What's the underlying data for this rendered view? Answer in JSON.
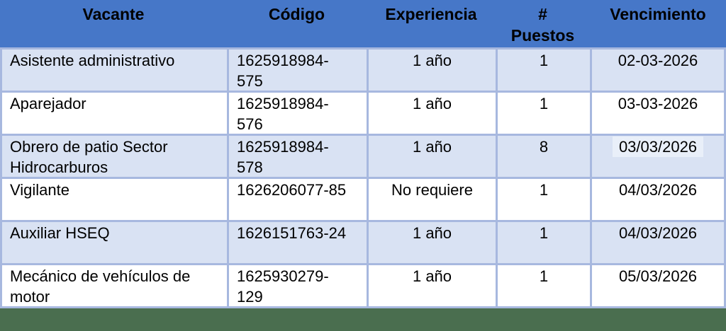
{
  "table": {
    "columns": [
      {
        "label": "Vacante"
      },
      {
        "label": "Código"
      },
      {
        "label": "Experiencia"
      },
      {
        "label": "#\nPuestos"
      },
      {
        "label": "Vencimiento"
      }
    ],
    "rows": [
      {
        "vacante": "Asistente administrativo",
        "codigo": "1625918984-575",
        "experiencia": "1 año",
        "puestos": "1",
        "vencimiento": "02-03-2026",
        "vencimiento_highlighted": false
      },
      {
        "vacante": "Aparejador",
        "codigo": "1625918984-576",
        "experiencia": "1 año",
        "puestos": "1",
        "vencimiento": "03-03-2026",
        "vencimiento_highlighted": false
      },
      {
        "vacante": "Obrero de patio Sector Hidrocarburos",
        "codigo": "1625918984-578",
        "experiencia": "1 año",
        "puestos": "8",
        "vencimiento": "03/03/2026",
        "vencimiento_highlighted": true
      },
      {
        "vacante": "Vigilante",
        "codigo": "1626206077-85",
        "experiencia": "No requiere",
        "puestos": "1",
        "vencimiento": "04/03/2026",
        "vencimiento_highlighted": false
      },
      {
        "vacante": "Auxiliar HSEQ",
        "codigo": "1626151763-24",
        "experiencia": "1 año",
        "puestos": "1",
        "vencimiento": "04/03/2026",
        "vencimiento_highlighted": false
      },
      {
        "vacante": "Mecánico de vehículos de motor",
        "codigo": "1625930279-129",
        "experiencia": "1 año",
        "puestos": "1",
        "vencimiento": "05/03/2026",
        "vencimiento_highlighted": false
      }
    ]
  },
  "colors": {
    "header_bg": "#4677C8",
    "band_row_bg": "#D9E2F3",
    "plain_row_bg": "#FFFFFF",
    "border": "#A7B8DF",
    "highlight_bg": "#E9EFF9",
    "footer_strip_bg": "#4A6E4F",
    "text": "#000000"
  }
}
